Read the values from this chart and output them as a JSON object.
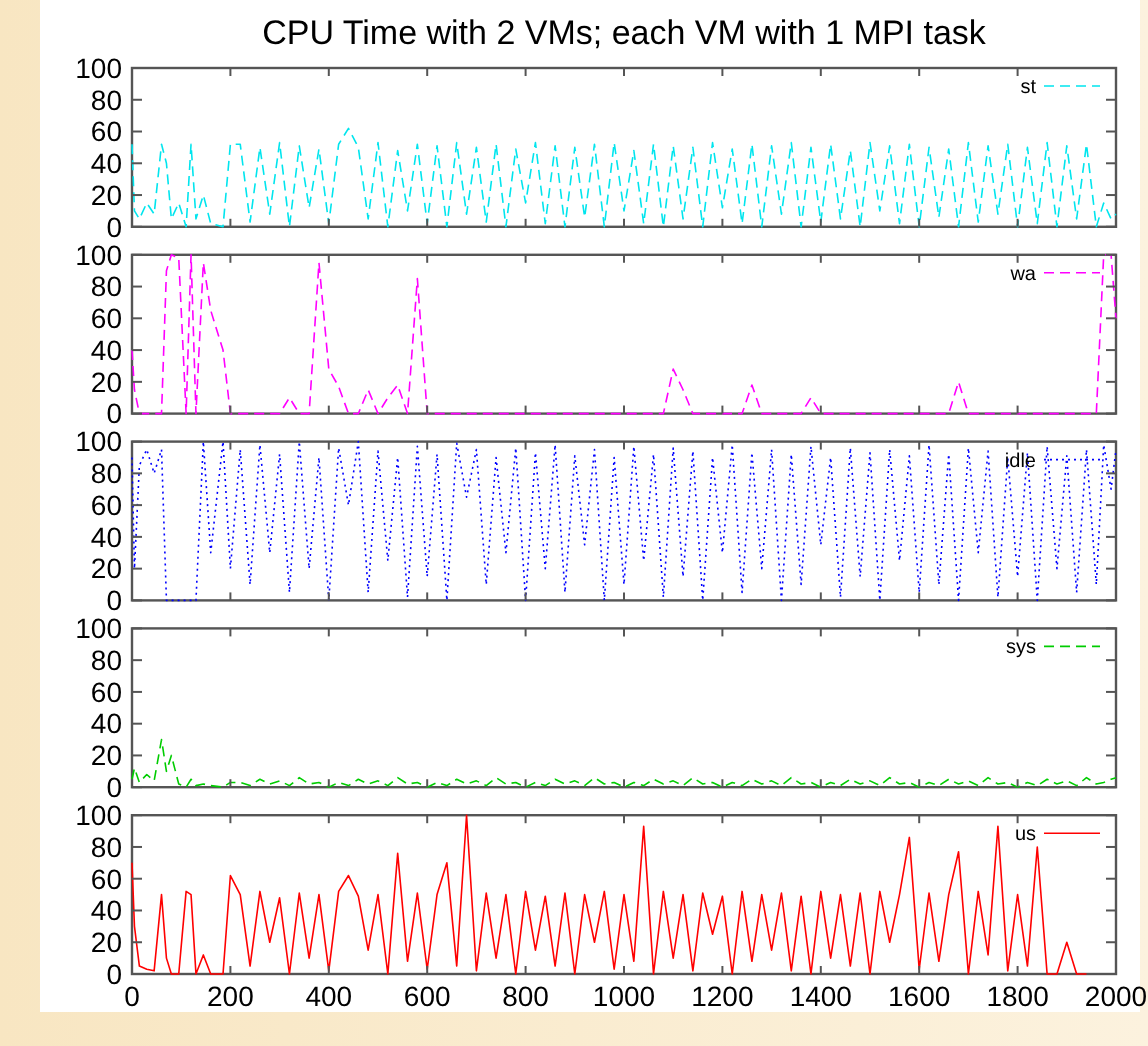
{
  "chart_data": [
    {
      "type": "line",
      "title": "CPU Time with 2 VMs; each VM with 1 MPI task",
      "xlim": [
        0,
        2000
      ],
      "xticks": [
        0,
        200,
        400,
        600,
        800,
        1000,
        1200,
        1400,
        1600,
        1800,
        2000
      ],
      "ylim": [
        0,
        100
      ],
      "yticks": [
        0,
        20,
        40,
        60,
        80,
        100
      ],
      "tick_labels": "y",
      "legend": "top right",
      "line_style": "dashed",
      "x": [
        0,
        5,
        15,
        30,
        45,
        60,
        70,
        80,
        95,
        110,
        120,
        130,
        145,
        160,
        185,
        200,
        220,
        240,
        260,
        280,
        300,
        320,
        340,
        360,
        380,
        400,
        420,
        440,
        460,
        480,
        500,
        520,
        540,
        560,
        580,
        600,
        620,
        640,
        660,
        680,
        700,
        720,
        740,
        760,
        780,
        800,
        820,
        840,
        860,
        880,
        900,
        920,
        940,
        960,
        980,
        1000,
        1020,
        1040,
        1060,
        1080,
        1100,
        1120,
        1140,
        1160,
        1180,
        1200,
        1220,
        1240,
        1260,
        1280,
        1300,
        1320,
        1340,
        1360,
        1380,
        1400,
        1420,
        1440,
        1460,
        1480,
        1500,
        1520,
        1540,
        1560,
        1580,
        1600,
        1620,
        1640,
        1660,
        1680,
        1700,
        1720,
        1740,
        1760,
        1780,
        1800,
        1820,
        1840,
        1860,
        1880,
        1900,
        1920,
        1940,
        1960,
        1975,
        1990,
        2000
      ],
      "series": [
        {
          "name": "st",
          "color": "#00e5ee",
          "values": [
            52,
            10,
            5,
            15,
            8,
            52,
            40,
            5,
            15,
            0,
            52,
            5,
            20,
            2,
            0,
            52,
            52,
            3,
            50,
            8,
            53,
            0,
            51,
            12,
            49,
            2,
            52,
            62,
            50,
            5,
            53,
            0,
            48,
            10,
            52,
            2,
            51,
            0,
            53,
            8,
            50,
            3,
            52,
            0,
            49,
            15,
            53,
            2,
            51,
            0,
            50,
            6,
            52,
            0,
            53,
            10,
            48,
            2,
            52,
            0,
            51,
            5,
            50,
            0,
            53,
            12,
            49,
            2,
            52,
            0,
            51,
            8,
            53,
            0,
            50,
            3,
            52,
            5,
            48,
            0,
            53,
            10,
            51,
            2,
            52,
            0,
            50,
            6,
            49,
            0,
            53,
            3,
            51,
            8,
            52,
            0,
            50,
            2,
            53,
            0,
            51,
            5,
            52,
            0,
            15,
            5,
            8
          ]
        }
      ]
    },
    {
      "type": "line",
      "xlim": [
        0,
        2000
      ],
      "xticks": [
        0,
        200,
        400,
        600,
        800,
        1000,
        1200,
        1400,
        1600,
        1800,
        2000
      ],
      "ylim": [
        0,
        100
      ],
      "yticks": [
        0,
        20,
        40,
        60,
        80,
        100
      ],
      "tick_labels": "y",
      "legend": "top right",
      "line_style": "dashed",
      "x": [
        0,
        5,
        15,
        30,
        45,
        60,
        70,
        80,
        95,
        110,
        120,
        130,
        145,
        160,
        185,
        200,
        220,
        240,
        260,
        280,
        300,
        320,
        340,
        360,
        380,
        400,
        420,
        440,
        460,
        480,
        500,
        520,
        540,
        560,
        580,
        600,
        620,
        640,
        660,
        680,
        700,
        720,
        740,
        760,
        780,
        800,
        820,
        840,
        860,
        880,
        900,
        920,
        940,
        960,
        980,
        1000,
        1020,
        1040,
        1060,
        1080,
        1100,
        1120,
        1140,
        1160,
        1180,
        1200,
        1220,
        1240,
        1260,
        1280,
        1300,
        1320,
        1340,
        1360,
        1380,
        1400,
        1420,
        1440,
        1460,
        1480,
        1500,
        1520,
        1540,
        1560,
        1580,
        1600,
        1620,
        1640,
        1660,
        1680,
        1700,
        1720,
        1740,
        1760,
        1780,
        1800,
        1820,
        1840,
        1860,
        1880,
        1900,
        1920,
        1940,
        1960,
        1975,
        1990,
        2000
      ],
      "series": [
        {
          "name": "wa",
          "color": "#ff00ff",
          "values": [
            40,
            15,
            0,
            0,
            0,
            0,
            90,
            100,
            98,
            0,
            100,
            0,
            95,
            65,
            40,
            0,
            0,
            0,
            0,
            0,
            0,
            10,
            0,
            0,
            95,
            28,
            17,
            0,
            0,
            15,
            0,
            10,
            18,
            0,
            85,
            0,
            0,
            0,
            0,
            0,
            0,
            0,
            0,
            0,
            0,
            0,
            0,
            0,
            0,
            0,
            0,
            0,
            0,
            0,
            0,
            0,
            0,
            0,
            0,
            0,
            28,
            15,
            0,
            0,
            0,
            0,
            0,
            0,
            18,
            0,
            0,
            0,
            0,
            0,
            10,
            0,
            0,
            0,
            0,
            0,
            0,
            0,
            0,
            0,
            0,
            0,
            0,
            0,
            0,
            20,
            0,
            0,
            0,
            0,
            0,
            0,
            0,
            0,
            0,
            0,
            0,
            0,
            0,
            0,
            100,
            100,
            60
          ]
        }
      ]
    },
    {
      "type": "line",
      "xlim": [
        0,
        2000
      ],
      "xticks": [
        0,
        200,
        400,
        600,
        800,
        1000,
        1200,
        1400,
        1600,
        1800,
        2000
      ],
      "ylim": [
        0,
        100
      ],
      "yticks": [
        0,
        20,
        40,
        60,
        80,
        100
      ],
      "tick_labels": "y",
      "legend": "top right",
      "line_style": "dotted",
      "x": [
        0,
        5,
        15,
        30,
        45,
        60,
        70,
        80,
        95,
        110,
        120,
        130,
        145,
        160,
        185,
        200,
        220,
        240,
        260,
        280,
        300,
        320,
        340,
        360,
        380,
        400,
        420,
        440,
        460,
        480,
        500,
        520,
        540,
        560,
        580,
        600,
        620,
        640,
        660,
        680,
        700,
        720,
        740,
        760,
        780,
        800,
        820,
        840,
        860,
        880,
        900,
        920,
        940,
        960,
        980,
        1000,
        1020,
        1040,
        1060,
        1080,
        1100,
        1120,
        1140,
        1160,
        1180,
        1200,
        1220,
        1240,
        1260,
        1280,
        1300,
        1320,
        1340,
        1360,
        1380,
        1400,
        1420,
        1440,
        1460,
        1480,
        1500,
        1520,
        1540,
        1560,
        1580,
        1600,
        1620,
        1640,
        1660,
        1680,
        1700,
        1720,
        1740,
        1760,
        1780,
        1800,
        1820,
        1840,
        1860,
        1880,
        1900,
        1920,
        1940,
        1960,
        1975,
        1990,
        2000
      ],
      "series": [
        {
          "name": "idle",
          "color": "#0000ff",
          "values": [
            90,
            20,
            85,
            95,
            80,
            95,
            0,
            0,
            0,
            0,
            0,
            0,
            100,
            30,
            100,
            20,
            95,
            10,
            98,
            30,
            92,
            5,
            100,
            20,
            90,
            0,
            96,
            60,
            100,
            5,
            94,
            25,
            90,
            2,
            97,
            15,
            92,
            0,
            99,
            65,
            95,
            10,
            90,
            30,
            96,
            0,
            93,
            20,
            98,
            5,
            91,
            35,
            95,
            0,
            90,
            10,
            97,
            25,
            92,
            2,
            96,
            15,
            94,
            0,
            90,
            30,
            98,
            5,
            93,
            20,
            95,
            0,
            92,
            10,
            97,
            35,
            90,
            2,
            96,
            15,
            93,
            0,
            95,
            25,
            91,
            5,
            98,
            10,
            92,
            0,
            96,
            30,
            94,
            2,
            90,
            15,
            93,
            0,
            97,
            20,
            91,
            5,
            95,
            10,
            98,
            70,
            95
          ]
        }
      ]
    },
    {
      "type": "line",
      "xlim": [
        0,
        2000
      ],
      "xticks": [
        0,
        200,
        400,
        600,
        800,
        1000,
        1200,
        1400,
        1600,
        1800,
        2000
      ],
      "ylim": [
        0,
        100
      ],
      "yticks": [
        0,
        20,
        40,
        60,
        80,
        100
      ],
      "tick_labels": "y",
      "legend": "top right",
      "line_style": "dashed",
      "x": [
        0,
        5,
        15,
        30,
        45,
        60,
        70,
        80,
        95,
        110,
        120,
        130,
        145,
        160,
        185,
        200,
        220,
        240,
        260,
        280,
        300,
        320,
        340,
        360,
        380,
        400,
        420,
        440,
        460,
        480,
        500,
        520,
        540,
        560,
        580,
        600,
        620,
        640,
        660,
        680,
        700,
        720,
        740,
        760,
        780,
        800,
        820,
        840,
        860,
        880,
        900,
        920,
        940,
        960,
        980,
        1000,
        1020,
        1040,
        1060,
        1080,
        1100,
        1120,
        1140,
        1160,
        1180,
        1200,
        1220,
        1240,
        1260,
        1280,
        1300,
        1320,
        1340,
        1360,
        1380,
        1400,
        1420,
        1440,
        1460,
        1480,
        1500,
        1520,
        1540,
        1560,
        1580,
        1600,
        1620,
        1640,
        1660,
        1680,
        1700,
        1720,
        1740,
        1760,
        1780,
        1800,
        1820,
        1840,
        1860,
        1880,
        1900,
        1920,
        1940,
        1960,
        1975,
        1990,
        2000
      ],
      "series": [
        {
          "name": "sys",
          "color": "#00cc00",
          "values": [
            5,
            12,
            3,
            8,
            4,
            30,
            10,
            20,
            2,
            0,
            5,
            1,
            2,
            1,
            0,
            3,
            3,
            1,
            5,
            2,
            4,
            1,
            6,
            2,
            3,
            0,
            3,
            1,
            5,
            2,
            4,
            1,
            6,
            2,
            3,
            0,
            3,
            1,
            5,
            2,
            4,
            1,
            6,
            2,
            3,
            0,
            3,
            1,
            5,
            2,
            4,
            1,
            6,
            2,
            3,
            0,
            3,
            1,
            5,
            2,
            4,
            1,
            6,
            2,
            3,
            0,
            3,
            1,
            5,
            2,
            4,
            1,
            6,
            2,
            3,
            0,
            3,
            1,
            5,
            2,
            4,
            1,
            6,
            2,
            3,
            0,
            3,
            1,
            5,
            2,
            4,
            1,
            6,
            2,
            3,
            0,
            3,
            1,
            5,
            2,
            4,
            1,
            6,
            2,
            3,
            5,
            6
          ]
        }
      ]
    },
    {
      "type": "line",
      "xlim": [
        0,
        2000
      ],
      "xticks": [
        0,
        200,
        400,
        600,
        800,
        1000,
        1200,
        1400,
        1600,
        1800,
        2000
      ],
      "ylim": [
        0,
        100
      ],
      "yticks": [
        0,
        20,
        40,
        60,
        80,
        100
      ],
      "legend": "top right",
      "line_style": "solid",
      "x": [
        0,
        5,
        15,
        30,
        45,
        60,
        70,
        80,
        95,
        110,
        120,
        130,
        145,
        160,
        185,
        200,
        220,
        240,
        260,
        280,
        300,
        320,
        340,
        360,
        380,
        400,
        420,
        440,
        460,
        480,
        500,
        520,
        540,
        560,
        580,
        600,
        620,
        640,
        660,
        680,
        700,
        720,
        740,
        760,
        780,
        800,
        820,
        840,
        860,
        880,
        900,
        920,
        940,
        960,
        980,
        1000,
        1020,
        1040,
        1060,
        1080,
        1100,
        1120,
        1140,
        1160,
        1180,
        1200,
        1220,
        1240,
        1260,
        1280,
        1300,
        1320,
        1340,
        1360,
        1380,
        1400,
        1420,
        1440,
        1460,
        1480,
        1500,
        1520,
        1540,
        1560,
        1580,
        1600,
        1620,
        1640,
        1660,
        1680,
        1700,
        1720,
        1740,
        1760,
        1780,
        1800,
        1820,
        1840,
        1860,
        1880,
        1900,
        1920,
        1940
      ],
      "series": [
        {
          "name": "us",
          "color": "#ff0000",
          "values": [
            70,
            30,
            5,
            3,
            2,
            50,
            10,
            0,
            0,
            52,
            50,
            0,
            12,
            0,
            0,
            62,
            50,
            5,
            52,
            20,
            48,
            0,
            51,
            10,
            50,
            2,
            52,
            62,
            49,
            15,
            50,
            0,
            76,
            8,
            51,
            3,
            50,
            70,
            5,
            100,
            2,
            51,
            10,
            50,
            0,
            52,
            15,
            49,
            5,
            51,
            0,
            50,
            20,
            52,
            3,
            50,
            8,
            93,
            0,
            52,
            10,
            50,
            2,
            51,
            25,
            49,
            0,
            52,
            8,
            50,
            15,
            51,
            2,
            49,
            0,
            52,
            10,
            50,
            5,
            51,
            0,
            52,
            20,
            50,
            86,
            3,
            51,
            8,
            50,
            77,
            0,
            52,
            12,
            93,
            2,
            50,
            5,
            80,
            0,
            0,
            20,
            0,
            0
          ]
        }
      ]
    }
  ]
}
